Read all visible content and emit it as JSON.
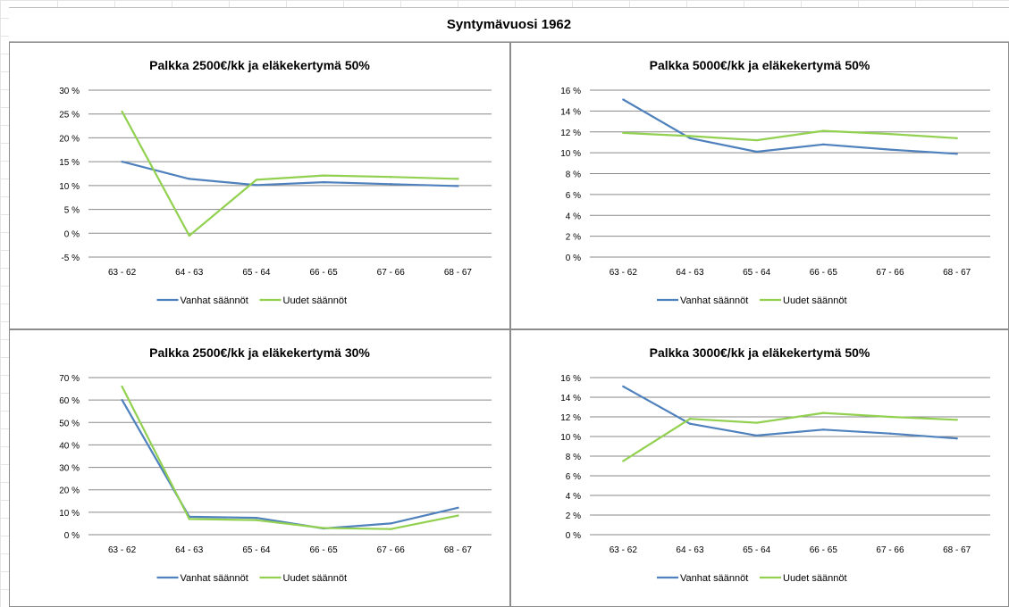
{
  "sheet_title": "Syntymävuosi 1962",
  "colors": {
    "old_rules": "#4f81bd",
    "new_rules": "#92d050"
  },
  "chart_data": [
    {
      "type": "line",
      "title": "Palkka 2500€/kk  ja eläkekertymä  50%",
      "categories": [
        "63 - 62",
        "64 - 63",
        "65 - 64",
        "66 - 65",
        "67 - 66",
        "68 - 67"
      ],
      "ylim": [
        -5,
        30
      ],
      "yticks": [
        -5,
        0,
        5,
        10,
        15,
        20,
        25,
        30
      ],
      "ytick_labels": [
        "-5 %",
        "0 %",
        "5 %",
        "10 %",
        "15 %",
        "20 %",
        "25 %",
        "30 %"
      ],
      "grid": true,
      "legend": "bottom",
      "series": [
        {
          "name": "Vanhat säännöt",
          "values": [
            15.0,
            11.4,
            10.1,
            10.7,
            10.3,
            9.9
          ]
        },
        {
          "name": "Uudet säännöt",
          "values": [
            25.5,
            -0.5,
            11.2,
            12.1,
            11.8,
            11.4
          ]
        }
      ]
    },
    {
      "type": "line",
      "title": "Palkka 5000€/kk  ja eläkekertymä  50%",
      "categories": [
        "63 - 62",
        "64 - 63",
        "65 - 64",
        "66 - 65",
        "67 - 66",
        "68 - 67"
      ],
      "ylim": [
        0,
        16
      ],
      "yticks": [
        0,
        2,
        4,
        6,
        8,
        10,
        12,
        14,
        16
      ],
      "ytick_labels": [
        "0 %",
        "2 %",
        "4 %",
        "6 %",
        "8 %",
        "10 %",
        "12 %",
        "14 %",
        "16 %"
      ],
      "grid": true,
      "legend": "bottom",
      "series": [
        {
          "name": "Vanhat säännöt",
          "values": [
            15.1,
            11.4,
            10.1,
            10.8,
            10.3,
            9.9
          ]
        },
        {
          "name": "Uudet säännöt",
          "values": [
            11.9,
            11.6,
            11.2,
            12.1,
            11.8,
            11.4
          ]
        }
      ]
    },
    {
      "type": "line",
      "title": "Palkka 2500€/kk  ja eläkekertymä  30%",
      "categories": [
        "63 - 62",
        "64 - 63",
        "65 - 64",
        "66 - 65",
        "67 - 66",
        "68 - 67"
      ],
      "ylim": [
        0,
        70
      ],
      "yticks": [
        0,
        10,
        20,
        30,
        40,
        50,
        60,
        70
      ],
      "ytick_labels": [
        "0 %",
        "10 %",
        "20 %",
        "30 %",
        "40 %",
        "50 %",
        "60 %",
        "70 %"
      ],
      "grid": true,
      "legend": "bottom",
      "series": [
        {
          "name": "Vanhat säännöt",
          "values": [
            60,
            8,
            7.5,
            2.8,
            5,
            12
          ]
        },
        {
          "name": "Uudet säännöt",
          "values": [
            66,
            7,
            6.5,
            3,
            2.5,
            8.5
          ]
        }
      ]
    },
    {
      "type": "line",
      "title": "Palkka 3000€/kk  ja eläkekertymä  50%",
      "categories": [
        "63 - 62",
        "64 - 63",
        "65 - 64",
        "66 - 65",
        "67 - 66",
        "68 - 67"
      ],
      "ylim": [
        0,
        16
      ],
      "yticks": [
        0,
        2,
        4,
        6,
        8,
        10,
        12,
        14,
        16
      ],
      "ytick_labels": [
        "0 %",
        "2 %",
        "4 %",
        "6 %",
        "8 %",
        "10 %",
        "12 %",
        "14 %",
        "16 %"
      ],
      "grid": true,
      "legend": "bottom",
      "series": [
        {
          "name": "Vanhat säännöt",
          "values": [
            15.1,
            11.3,
            10.1,
            10.7,
            10.3,
            9.8
          ]
        },
        {
          "name": "Uudet säännöt",
          "values": [
            7.5,
            11.8,
            11.4,
            12.4,
            12.0,
            11.7
          ]
        }
      ]
    }
  ]
}
